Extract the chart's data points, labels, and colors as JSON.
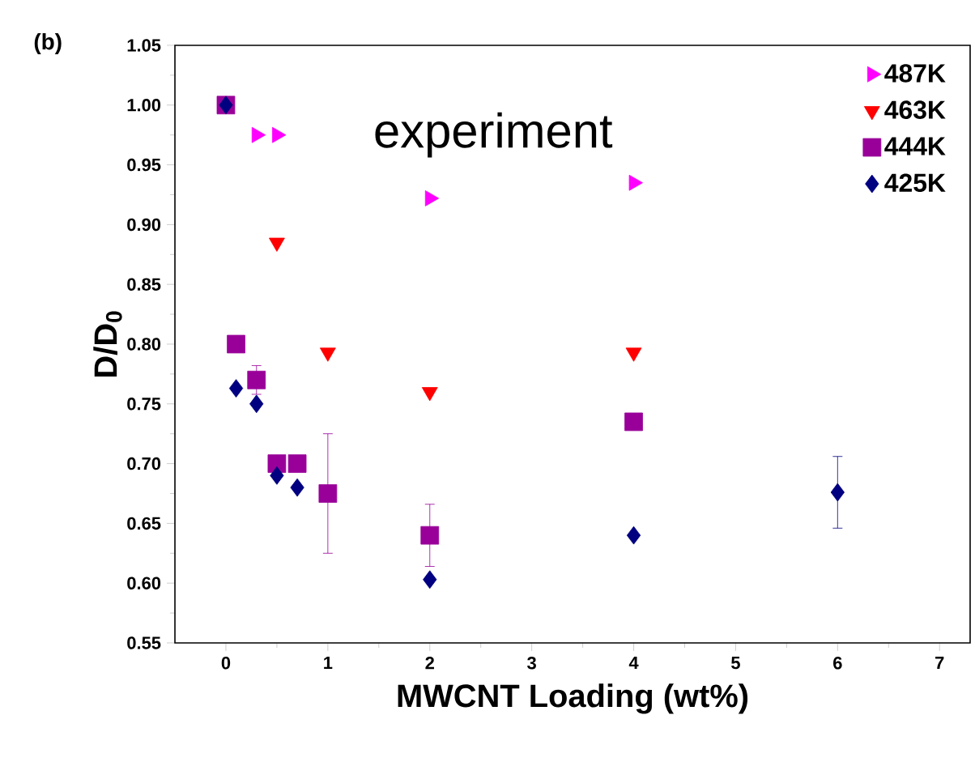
{
  "chart_data": {
    "type": "scatter",
    "xlabel": "MWCNT Loading (wt%)",
    "ylabel": "D/D$_{0}$",
    "annotations": [
      "(b)",
      "experiment"
    ],
    "xlim": [
      -0.5,
      7.3
    ],
    "ylim": [
      0.55,
      1.05
    ],
    "xticks": [
      0,
      1,
      2,
      3,
      4,
      5,
      6,
      7
    ],
    "yticks": [
      {
        "value": 0.55,
        "label": "0.55"
      },
      {
        "value": 0.6,
        "label": "0.60"
      },
      {
        "value": 0.65,
        "label": "0.65"
      },
      {
        "value": 0.7,
        "label": "0.70"
      },
      {
        "value": 0.75,
        "label": "0.75"
      },
      {
        "value": 0.8,
        "label": "0.80"
      },
      {
        "value": 0.85,
        "label": "0.85"
      },
      {
        "value": 0.9,
        "label": "0.90"
      },
      {
        "value": 0.95,
        "label": "0.95"
      },
      {
        "value": 1.0,
        "label": "1.00"
      },
      {
        "value": 1.05,
        "label": "1.05"
      }
    ],
    "legend": "top right",
    "series": [
      {
        "name": "487K",
        "color": "#ff00ff",
        "marker": "triangle-right",
        "x": [
          0.3,
          0.5,
          2,
          4
        ],
        "values": [
          0.975,
          0.975,
          0.922,
          0.935
        ]
      },
      {
        "name": "463K",
        "color": "#ff0000",
        "marker": "triangle-down",
        "x": [
          0.5,
          1,
          2,
          4
        ],
        "values": [
          0.885,
          0.793,
          0.76,
          0.793
        ]
      },
      {
        "name": "444K",
        "color": "#990099",
        "marker": "square",
        "x": [
          0,
          0.1,
          0.3,
          0.5,
          0.7,
          1,
          2,
          4
        ],
        "values": [
          1.0,
          0.8,
          0.77,
          0.7,
          0.7,
          0.675,
          0.64,
          0.735
        ],
        "errors": [
          null,
          null,
          0.012,
          null,
          null,
          0.05,
          0.026,
          null
        ]
      },
      {
        "name": "425K",
        "color": "#000080",
        "marker": "diamond",
        "x": [
          0,
          0.1,
          0.3,
          0.5,
          0.7,
          2,
          4,
          6
        ],
        "values": [
          1.0,
          0.763,
          0.75,
          0.69,
          0.68,
          0.603,
          0.64,
          0.676
        ],
        "errors": [
          null,
          null,
          null,
          null,
          null,
          null,
          null,
          0.03
        ]
      }
    ]
  }
}
